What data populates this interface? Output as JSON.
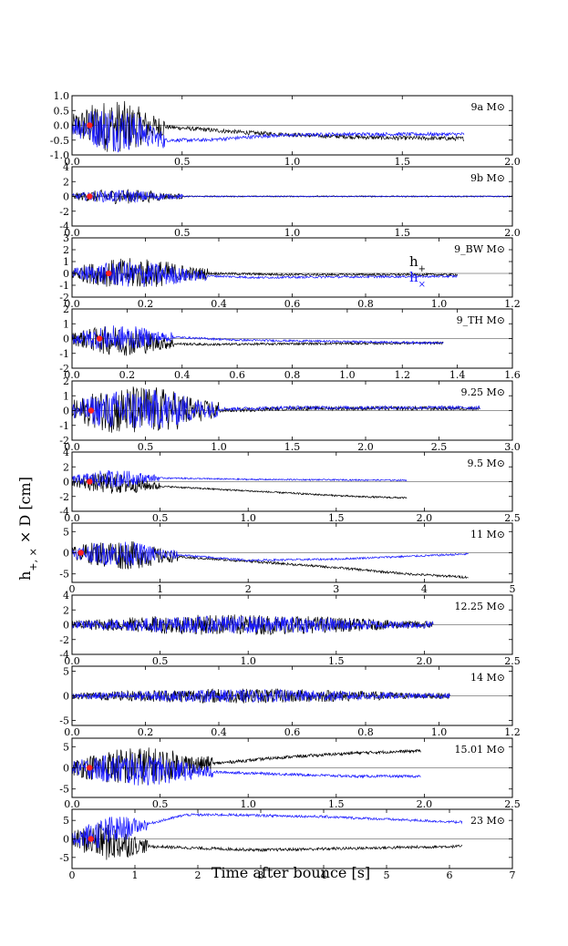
{
  "figure": {
    "ylabel": "h+, × × D [cm]",
    "xlabel": "Time after bounce [s]"
  },
  "legend": {
    "hplus": "h+",
    "hcross": "h×"
  },
  "chart_data": [
    {
      "type": "line",
      "label": "9a M⊙",
      "xlim": [
        0,
        2.0
      ],
      "ylim": [
        -1.0,
        1.0
      ],
      "xticks": [
        "0.0",
        "0.5",
        "1.0",
        "1.5",
        "2.0"
      ],
      "yticks": [
        "-1.0",
        "-0.5",
        "0.0",
        "0.5",
        "1.0"
      ],
      "yticks_num": [
        -1.0,
        -0.5,
        0.0,
        0.5,
        1.0
      ],
      "x_end": 1.78,
      "burst_end": 0.42,
      "burst_amp": 0.9,
      "black_x": [
        0.0,
        0.42,
        0.8,
        1.1,
        1.4,
        1.78
      ],
      "black_y": [
        0.0,
        -0.05,
        -0.25,
        -0.35,
        -0.42,
        -0.45
      ],
      "blue_x": [
        0.0,
        0.3,
        0.42,
        0.6,
        0.9,
        1.2,
        1.78
      ],
      "blue_y": [
        0.0,
        -0.2,
        -0.5,
        -0.5,
        -0.35,
        -0.3,
        -0.3
      ],
      "marker_x": 0.08,
      "marker_y": 0.0,
      "series": [
        {
          "name": "h+",
          "color": "#000000"
        },
        {
          "name": "h×",
          "color": "#1a1aff"
        }
      ]
    },
    {
      "type": "line",
      "label": "9b M⊙",
      "xlim": [
        0,
        2.0
      ],
      "ylim": [
        -4,
        4
      ],
      "xticks": [
        "0.0",
        "0.5",
        "1.0",
        "1.5",
        "2.0"
      ],
      "yticks": [
        "-4",
        "-2",
        "0",
        "2",
        "4"
      ],
      "yticks_num": [
        -4,
        -2,
        0,
        2,
        4
      ],
      "x_end": 2.02,
      "burst_end": 0.5,
      "burst_amp": 1.0,
      "black_x": [
        0.0,
        2.02
      ],
      "black_y": [
        0.0,
        0.0
      ],
      "blue_x": [
        0.0,
        2.02
      ],
      "blue_y": [
        0.0,
        0.0
      ],
      "marker_x": 0.08,
      "marker_y": 0.0,
      "series": [
        {
          "name": "h+",
          "color": "#000000"
        },
        {
          "name": "h×",
          "color": "#1a1aff"
        }
      ]
    },
    {
      "type": "line",
      "label": "9_BW M⊙",
      "xlim": [
        0,
        1.2
      ],
      "ylim": [
        -2,
        3
      ],
      "xticks": [
        "0.0",
        "0.2",
        "0.4",
        "0.6",
        "0.8",
        "1.0",
        "1.2"
      ],
      "yticks": [
        "-2",
        "-1",
        "0",
        "1",
        "2",
        "3"
      ],
      "yticks_num": [
        -2,
        -1,
        0,
        1,
        2,
        3
      ],
      "x_end": 1.05,
      "burst_end": 0.37,
      "burst_amp": 1.3,
      "black_x": [
        0.0,
        0.37,
        0.6,
        0.8,
        1.05
      ],
      "black_y": [
        0.0,
        0.0,
        -0.1,
        -0.1,
        -0.1
      ],
      "blue_x": [
        0.0,
        0.37,
        0.5,
        0.7,
        1.05
      ],
      "blue_y": [
        0.0,
        -0.2,
        -0.35,
        -0.3,
        -0.25
      ],
      "marker_x": 0.1,
      "marker_y": 0.0,
      "series": [
        {
          "name": "h+",
          "color": "#000000"
        },
        {
          "name": "h×",
          "color": "#1a1aff"
        }
      ]
    },
    {
      "type": "line",
      "label": "9_TH M⊙",
      "xlim": [
        0,
        1.6
      ],
      "ylim": [
        -2,
        2
      ],
      "xticks": [
        "0.0",
        "0.2",
        "0.4",
        "0.6",
        "0.8",
        "1.0",
        "1.2",
        "1.4",
        "1.6"
      ],
      "yticks": [
        "-2",
        "-1",
        "0",
        "1",
        "2"
      ],
      "yticks_num": [
        -2,
        -1,
        0,
        1,
        2
      ],
      "x_end": 1.35,
      "burst_end": 0.37,
      "burst_amp": 1.0,
      "black_x": [
        0.0,
        0.37,
        0.5,
        0.8,
        1.35
      ],
      "black_y": [
        0.0,
        -0.35,
        -0.4,
        -0.35,
        -0.3
      ],
      "blue_x": [
        0.0,
        0.37,
        0.6,
        1.35
      ],
      "blue_y": [
        0.0,
        0.1,
        -0.1,
        -0.3
      ],
      "marker_x": 0.1,
      "marker_y": 0.0,
      "series": [
        {
          "name": "h+",
          "color": "#000000"
        },
        {
          "name": "h×",
          "color": "#1a1aff"
        }
      ]
    },
    {
      "type": "line",
      "label": "9.25 M⊙",
      "xlim": [
        0,
        3.0
      ],
      "ylim": [
        -2,
        2
      ],
      "xticks": [
        "0.0",
        "0.5",
        "1.0",
        "1.5",
        "2.0",
        "2.5",
        "3.0"
      ],
      "yticks": [
        "-2",
        "-1",
        "0",
        "1",
        "2"
      ],
      "yticks_num": [
        -2,
        -1,
        0,
        1,
        2
      ],
      "x_end": 2.78,
      "burst_end": 1.0,
      "burst_amp": 1.7,
      "black_x": [
        0.0,
        1.0,
        1.5,
        2.78
      ],
      "black_y": [
        0.0,
        0.0,
        0.15,
        0.15
      ],
      "blue_x": [
        0.0,
        1.0,
        1.5,
        2.78
      ],
      "blue_y": [
        0.0,
        0.1,
        0.2,
        0.2
      ],
      "marker_x": 0.13,
      "marker_y": 0.0,
      "series": [
        {
          "name": "h+",
          "color": "#000000"
        },
        {
          "name": "h×",
          "color": "#1a1aff"
        }
      ]
    },
    {
      "type": "line",
      "label": "9.5 M⊙",
      "xlim": [
        0,
        2.5
      ],
      "ylim": [
        -4,
        4
      ],
      "xticks": [
        "0.0",
        "0.5",
        "1.0",
        "1.5",
        "2.0",
        "2.5"
      ],
      "yticks": [
        "-4",
        "-2",
        "0",
        "2",
        "4"
      ],
      "yticks_num": [
        -4,
        -2,
        0,
        2,
        4
      ],
      "x_end": 1.9,
      "burst_end": 0.5,
      "burst_amp": 1.4,
      "black_x": [
        0.0,
        0.4,
        0.8,
        1.2,
        1.6,
        1.9
      ],
      "black_y": [
        0.0,
        -0.5,
        -1.0,
        -1.5,
        -2.0,
        -2.2
      ],
      "blue_x": [
        0.0,
        0.5,
        1.0,
        1.9
      ],
      "blue_y": [
        0.3,
        0.5,
        0.3,
        0.2
      ],
      "marker_x": 0.1,
      "marker_y": 0.0,
      "series": [
        {
          "name": "h+",
          "color": "#000000"
        },
        {
          "name": "h×",
          "color": "#1a1aff"
        }
      ]
    },
    {
      "type": "line",
      "label": "11 M⊙",
      "xlim": [
        0,
        5
      ],
      "ylim": [
        -7,
        7
      ],
      "xticks": [
        "0",
        "1",
        "2",
        "3",
        "4",
        "5"
      ],
      "yticks": [
        "-5",
        "0",
        "5"
      ],
      "yticks_num": [
        -5,
        0,
        5
      ],
      "x_end": 4.5,
      "burst_end": 1.2,
      "burst_amp": 3.5,
      "black_x": [
        0.0,
        1.2,
        2.0,
        3.0,
        3.8,
        4.5
      ],
      "black_y": [
        0.0,
        -1.0,
        -2.0,
        -3.5,
        -5.0,
        -5.8
      ],
      "blue_x": [
        0.0,
        1.2,
        2.0,
        3.0,
        4.5
      ],
      "blue_y": [
        0.0,
        -0.5,
        -1.8,
        -1.5,
        -0.3
      ],
      "marker_x": 0.1,
      "marker_y": 0.0,
      "series": [
        {
          "name": "h+",
          "color": "#000000"
        },
        {
          "name": "h×",
          "color": "#1a1aff"
        }
      ]
    },
    {
      "type": "line",
      "label": "12.25 M⊙",
      "xlim": [
        0,
        2.5
      ],
      "ylim": [
        -4,
        4
      ],
      "xticks": [
        "0.0",
        "0.5",
        "1.0",
        "1.5",
        "2.0",
        "2.5"
      ],
      "yticks": [
        "-4",
        "-2",
        "0",
        "2",
        "4"
      ],
      "yticks_num": [
        -4,
        -2,
        0,
        2,
        4
      ],
      "x_end": 2.05,
      "burst_end": 2.05,
      "burst_amp": 1.4,
      "black_x": [
        0.0,
        2.05
      ],
      "black_y": [
        0.0,
        0.0
      ],
      "blue_x": [
        0.0,
        2.05
      ],
      "blue_y": [
        0.0,
        0.0
      ],
      "marker_x": null,
      "marker_y": null,
      "series": [
        {
          "name": "h+",
          "color": "#000000"
        },
        {
          "name": "h×",
          "color": "#1a1aff"
        }
      ]
    },
    {
      "type": "line",
      "label": "14 M⊙",
      "xlim": [
        0,
        1.2
      ],
      "ylim": [
        -6,
        6
      ],
      "xticks": [
        "0.0",
        "0.2",
        "0.4",
        "0.6",
        "0.8",
        "1.0",
        "1.2"
      ],
      "yticks": [
        "-5",
        "0",
        "5"
      ],
      "yticks_num": [
        -5,
        0,
        5
      ],
      "x_end": 1.03,
      "burst_end": 1.03,
      "burst_amp": 1.5,
      "black_x": [
        0.0,
        1.03
      ],
      "black_y": [
        0.0,
        0.0
      ],
      "blue_x": [
        0.0,
        1.03
      ],
      "blue_y": [
        0.0,
        0.0
      ],
      "marker_x": null,
      "marker_y": null,
      "series": [
        {
          "name": "h+",
          "color": "#000000"
        },
        {
          "name": "h×",
          "color": "#1a1aff"
        }
      ]
    },
    {
      "type": "line",
      "label": "15.01 M⊙",
      "xlim": [
        0,
        2.5
      ],
      "ylim": [
        -7,
        7
      ],
      "xticks": [
        "0.0",
        "0.5",
        "1.0",
        "1.5",
        "2.0",
        "2.5"
      ],
      "yticks": [
        "-5",
        "0",
        "5"
      ],
      "yticks_num": [
        -5,
        0,
        5
      ],
      "x_end": 1.98,
      "burst_end": 0.8,
      "burst_amp": 4.5,
      "black_x": [
        0.0,
        0.8,
        1.2,
        1.6,
        1.98
      ],
      "black_y": [
        0.0,
        1.0,
        2.5,
        3.5,
        4.0
      ],
      "blue_x": [
        0.0,
        0.8,
        1.2,
        1.6,
        1.98
      ],
      "blue_y": [
        0.0,
        -1.0,
        -1.5,
        -2.0,
        -2.0
      ],
      "marker_x": 0.1,
      "marker_y": 0.0,
      "series": [
        {
          "name": "h+",
          "color": "#000000"
        },
        {
          "name": "h×",
          "color": "#1a1aff"
        }
      ]
    },
    {
      "type": "line",
      "label": "23 M⊙",
      "xlim": [
        0,
        7
      ],
      "ylim": [
        -8,
        8
      ],
      "xticks": [
        "0",
        "1",
        "2",
        "3",
        "4",
        "5",
        "6",
        "7"
      ],
      "yticks": [
        "-5",
        "0",
        "5"
      ],
      "yticks_num": [
        -5,
        0,
        5
      ],
      "x_end": 6.2,
      "burst_end": 1.2,
      "burst_amp": 5.0,
      "black_x": [
        0.0,
        1.2,
        2.0,
        3.0,
        6.2
      ],
      "black_y": [
        0.0,
        -2.0,
        -2.5,
        -3.0,
        -2.0
      ],
      "blue_x": [
        0.0,
        1.2,
        1.8,
        2.5,
        4.0,
        6.2
      ],
      "blue_y": [
        0.0,
        4.0,
        6.5,
        6.5,
        6.0,
        4.5
      ],
      "marker_x": 0.3,
      "marker_y": 0.0,
      "series": [
        {
          "name": "h+",
          "color": "#000000"
        },
        {
          "name": "h×",
          "color": "#1a1aff"
        }
      ]
    }
  ]
}
